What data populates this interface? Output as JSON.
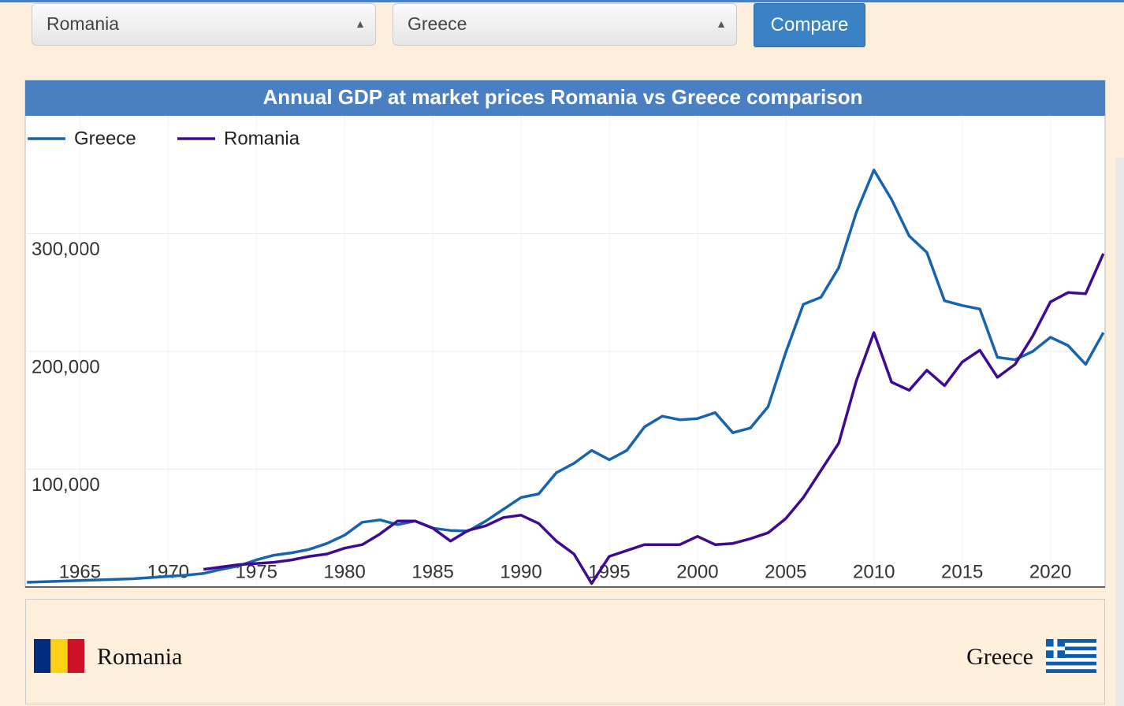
{
  "controls": {
    "country1": "Romania",
    "country2": "Greece",
    "button": "Compare"
  },
  "chart_data": {
    "type": "line",
    "title": "Annual GDP at market prices Romania vs Greece comparison",
    "x": [
      1962,
      1963,
      1964,
      1965,
      1966,
      1967,
      1968,
      1969,
      1970,
      1971,
      1972,
      1973,
      1974,
      1975,
      1976,
      1977,
      1978,
      1979,
      1980,
      1981,
      1982,
      1983,
      1984,
      1985,
      1986,
      1987,
      1988,
      1989,
      1990,
      1991,
      1992,
      1993,
      1994,
      1995,
      1996,
      1997,
      1998,
      1999,
      2000,
      2001,
      2002,
      2003,
      2004,
      2005,
      2006,
      2007,
      2008,
      2009,
      2010,
      2011,
      2012,
      2013,
      2014,
      2015,
      2016,
      2017,
      2018,
      2019,
      2020,
      2021,
      2022,
      2023
    ],
    "series": [
      {
        "name": "Greece",
        "color": "#1763ad",
        "values": [
          4000,
          4500,
          5000,
          5500,
          6000,
          6500,
          7000,
          8000,
          9000,
          10000,
          11500,
          15000,
          18000,
          23000,
          27000,
          29000,
          32000,
          37000,
          44000,
          55000,
          57000,
          53000,
          56000,
          50000,
          48000,
          47500,
          56000,
          66000,
          76000,
          79000,
          97000,
          105000,
          116000,
          108000,
          116000,
          136000,
          145000,
          142000,
          143000,
          148000,
          131000,
          135000,
          153000,
          199000,
          240000,
          246000,
          271000,
          318000,
          354000,
          329000,
          298000,
          284000,
          243000,
          239000,
          236000,
          195000,
          193000,
          200000,
          212000,
          205000,
          189000,
          216000
        ]
      },
      {
        "name": "Romania",
        "color": "#3d0b92",
        "values": [
          null,
          null,
          null,
          null,
          null,
          null,
          null,
          null,
          null,
          null,
          15000,
          17000,
          19000,
          20000,
          21000,
          23000,
          26000,
          28000,
          33000,
          36000,
          45000,
          56000,
          56000,
          50000,
          39000,
          48000,
          52000,
          59000,
          61000,
          54000,
          39000,
          28000,
          3000,
          26000,
          31000,
          36000,
          36000,
          36000,
          43000,
          36000,
          37000,
          41000,
          46000,
          58000,
          76000,
          99000,
          122000,
          175000,
          216000,
          174000,
          167000,
          184000,
          171000,
          191000,
          201000,
          178000,
          189000,
          213000,
          242000,
          250000,
          249000,
          283000
        ]
      }
    ],
    "xlim": [
      1961.9,
      2023.1
    ],
    "xticks": [
      1965,
      1970,
      1975,
      1980,
      1985,
      1990,
      1995,
      2000,
      2005,
      2010,
      2015,
      2020
    ],
    "ylim": [
      0,
      400000
    ],
    "yticks": [
      {
        "value": 100000,
        "label": "100,000"
      },
      {
        "value": 200000,
        "label": "200,000"
      },
      {
        "value": 300000,
        "label": "300,000"
      }
    ],
    "legend": "top-left",
    "grid": true
  },
  "footer": {
    "left": "Romania",
    "right": "Greece"
  }
}
